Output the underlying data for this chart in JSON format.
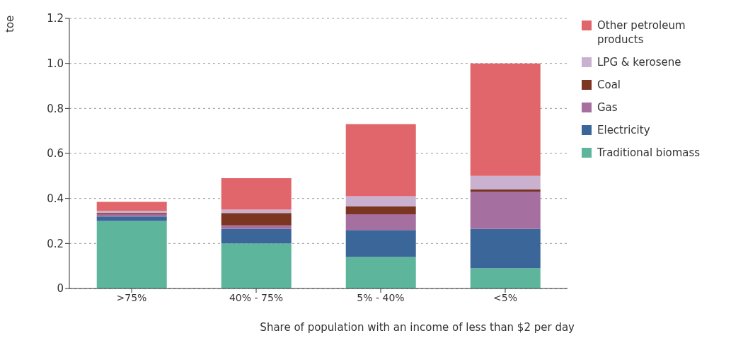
{
  "chart_data": {
    "type": "bar",
    "stacked": true,
    "ylabel": "toe",
    "xlabel": "Share of population with an income of less than $2 per day",
    "categories": [
      ">75%",
      "40% - 75%",
      "5% - 40%",
      "<5%"
    ],
    "series": [
      {
        "name": "Traditional biomass",
        "color": "#5db59b",
        "values": [
          0.3,
          0.2,
          0.14,
          0.09
        ]
      },
      {
        "name": "Electricity",
        "color": "#3a6699",
        "values": [
          0.02,
          0.065,
          0.12,
          0.175
        ]
      },
      {
        "name": "Gas",
        "color": "#a56fa0",
        "values": [
          0.01,
          0.015,
          0.07,
          0.165
        ]
      },
      {
        "name": "Coal",
        "color": "#7b3520",
        "values": [
          0.005,
          0.055,
          0.035,
          0.01
        ]
      },
      {
        "name": "LPG & kerosene",
        "color": "#c9b1cf",
        "values": [
          0.01,
          0.015,
          0.045,
          0.06
        ]
      },
      {
        "name": "Other petroleum products",
        "color": "#e0666b",
        "values": [
          0.04,
          0.14,
          0.32,
          0.5
        ]
      }
    ],
    "ylim": [
      0,
      1.2
    ],
    "yticks": [
      0,
      0.2,
      0.4,
      0.6,
      {
        "value": 1,
        "label": "1.0"
      },
      0.8,
      1.2
    ],
    "grid": "y",
    "legend": "right"
  }
}
